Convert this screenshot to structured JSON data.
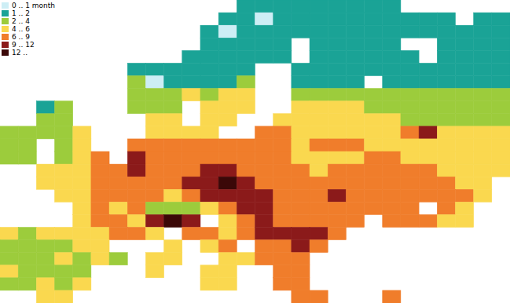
{
  "chart_data": {
    "type": "heatmap",
    "legend": "top-left",
    "tick_labels": false,
    "classes": [
      {
        "name": "0 .. 1 month",
        "color": "#cdeef5"
      },
      {
        "name": "1 .. 2",
        "color": "#1aa396"
      },
      {
        "name": "2 .. 4",
        "color": "#9ccc3c"
      },
      {
        "name": "4 .. 6",
        "color": "#fad84f"
      },
      {
        "name": "6 .. 9",
        "color": "#f07d2b"
      },
      {
        "name": "9 .. 12",
        "color": "#8b1a1a"
      },
      {
        "name": "12 ..",
        "color": "#3b0808"
      }
    ],
    "xlim": [
      -10,
      46
    ],
    "ylim": [
      35,
      71
    ],
    "x": [
      -10,
      -8,
      -6,
      -4,
      -2,
      0,
      2,
      4,
      6,
      8,
      10,
      12,
      14,
      16,
      18,
      20,
      22,
      24,
      26,
      28,
      30,
      32,
      34,
      36,
      38,
      40,
      42,
      44
    ],
    "y": [
      69.5,
      68,
      66.5,
      65,
      63.5,
      62,
      60.5,
      59,
      57.5,
      56,
      54.5,
      53,
      51.5,
      50,
      48.5,
      47,
      45.5,
      44,
      42.5,
      41,
      39.5,
      38,
      36.5,
      35
    ],
    "cells": [
      [
        null,
        null,
        null,
        null,
        null,
        null,
        null,
        null,
        null,
        null,
        null,
        null,
        null,
        1,
        1,
        1,
        1,
        1,
        1,
        1,
        1,
        1,
        null,
        null,
        null,
        null,
        null,
        null
      ],
      [
        null,
        null,
        null,
        null,
        null,
        null,
        null,
        null,
        null,
        null,
        null,
        null,
        1,
        1,
        0,
        1,
        1,
        1,
        1,
        1,
        1,
        1,
        1,
        1,
        1,
        null,
        1,
        1
      ],
      [
        null,
        null,
        null,
        null,
        null,
        null,
        null,
        null,
        null,
        null,
        null,
        1,
        0,
        1,
        1,
        1,
        1,
        1,
        1,
        1,
        1,
        1,
        1,
        1,
        1,
        1,
        1,
        1
      ],
      [
        null,
        null,
        null,
        null,
        null,
        null,
        null,
        null,
        null,
        null,
        null,
        1,
        1,
        1,
        1,
        1,
        null,
        1,
        1,
        1,
        1,
        1,
        null,
        null,
        1,
        1,
        1,
        1
      ],
      [
        null,
        null,
        null,
        null,
        null,
        null,
        null,
        null,
        null,
        null,
        1,
        1,
        1,
        1,
        1,
        1,
        null,
        1,
        1,
        1,
        1,
        1,
        1,
        null,
        1,
        1,
        1,
        1
      ],
      [
        null,
        null,
        null,
        null,
        null,
        null,
        null,
        1,
        1,
        1,
        1,
        1,
        1,
        1,
        null,
        null,
        1,
        1,
        1,
        1,
        1,
        1,
        1,
        1,
        1,
        1,
        1,
        1
      ],
      [
        null,
        null,
        null,
        null,
        null,
        null,
        null,
        2,
        0,
        1,
        1,
        1,
        1,
        2,
        null,
        null,
        1,
        1,
        1,
        1,
        null,
        1,
        1,
        1,
        1,
        1,
        1,
        1
      ],
      [
        null,
        null,
        null,
        null,
        null,
        null,
        null,
        2,
        2,
        2,
        3,
        2,
        3,
        3,
        null,
        null,
        2,
        2,
        2,
        2,
        2,
        2,
        2,
        2,
        2,
        2,
        2,
        2
      ],
      [
        null,
        null,
        1,
        2,
        null,
        null,
        null,
        2,
        2,
        2,
        null,
        3,
        3,
        3,
        null,
        null,
        3,
        3,
        3,
        3,
        2,
        2,
        2,
        2,
        2,
        2,
        2,
        2
      ],
      [
        null,
        null,
        2,
        2,
        null,
        null,
        null,
        null,
        3,
        3,
        null,
        3,
        3,
        null,
        null,
        3,
        3,
        3,
        3,
        3,
        3,
        3,
        2,
        2,
        2,
        2,
        2,
        2
      ],
      [
        2,
        2,
        2,
        2,
        3,
        null,
        null,
        null,
        3,
        3,
        3,
        3,
        null,
        null,
        4,
        4,
        3,
        3,
        3,
        3,
        3,
        3,
        4,
        5,
        3,
        3,
        3,
        3
      ],
      [
        2,
        2,
        null,
        2,
        3,
        null,
        null,
        4,
        4,
        4,
        4,
        4,
        4,
        4,
        4,
        4,
        3,
        4,
        4,
        4,
        3,
        3,
        3,
        3,
        3,
        3,
        3,
        3
      ],
      [
        2,
        2,
        null,
        2,
        3,
        4,
        null,
        5,
        4,
        4,
        4,
        4,
        4,
        4,
        4,
        4,
        3,
        3,
        3,
        3,
        4,
        4,
        3,
        3,
        3,
        3,
        3,
        3
      ],
      [
        null,
        null,
        3,
        3,
        3,
        4,
        4,
        5,
        4,
        4,
        4,
        5,
        5,
        4,
        4,
        4,
        4,
        3,
        4,
        4,
        4,
        4,
        4,
        4,
        3,
        3,
        3,
        3
      ],
      [
        null,
        null,
        3,
        3,
        3,
        4,
        4,
        4,
        4,
        4,
        5,
        5,
        6,
        5,
        4,
        4,
        4,
        4,
        4,
        4,
        4,
        4,
        4,
        4,
        4,
        3,
        3,
        null
      ],
      [
        null,
        null,
        null,
        3,
        3,
        4,
        4,
        4,
        4,
        3,
        4,
        5,
        5,
        5,
        5,
        4,
        4,
        4,
        5,
        4,
        4,
        4,
        4,
        4,
        4,
        4,
        3,
        null
      ],
      [
        null,
        null,
        null,
        null,
        3,
        4,
        3,
        4,
        2,
        2,
        2,
        3,
        4,
        5,
        5,
        4,
        4,
        4,
        4,
        4,
        4,
        4,
        4,
        null,
        4,
        3,
        null,
        null
      ],
      [
        null,
        null,
        null,
        null,
        3,
        4,
        4,
        3,
        5,
        6,
        5,
        null,
        3,
        4,
        5,
        4,
        4,
        4,
        4,
        4,
        null,
        4,
        4,
        4,
        3,
        3,
        null,
        null
      ],
      [
        3,
        2,
        3,
        3,
        3,
        3,
        4,
        4,
        3,
        null,
        4,
        4,
        3,
        4,
        5,
        5,
        5,
        5,
        4,
        null,
        null,
        null,
        null,
        null,
        null,
        null,
        null,
        null
      ],
      [
        2,
        2,
        2,
        2,
        3,
        3,
        null,
        null,
        null,
        3,
        null,
        3,
        4,
        null,
        4,
        4,
        5,
        4,
        null,
        null,
        null,
        null,
        null,
        null,
        null,
        null,
        null,
        null
      ],
      [
        2,
        2,
        2,
        3,
        2,
        3,
        2,
        null,
        3,
        3,
        null,
        null,
        3,
        3,
        4,
        4,
        4,
        null,
        null,
        null,
        null,
        null,
        null,
        null,
        null,
        null,
        null,
        null
      ],
      [
        3,
        2,
        2,
        2,
        2,
        null,
        null,
        null,
        3,
        null,
        null,
        3,
        3,
        null,
        null,
        4,
        4,
        null,
        null,
        null,
        null,
        null,
        null,
        null,
        null,
        null,
        null,
        null
      ],
      [
        2,
        2,
        3,
        2,
        3,
        null,
        null,
        null,
        null,
        null,
        null,
        3,
        3,
        null,
        null,
        4,
        4,
        null,
        null,
        null,
        null,
        null,
        null,
        null,
        null,
        null,
        null,
        null
      ],
      [
        null,
        null,
        3,
        3,
        null,
        null,
        null,
        null,
        null,
        null,
        null,
        null,
        null,
        null,
        null,
        null,
        4,
        4,
        null,
        null,
        null,
        4,
        null,
        null,
        null,
        null,
        null,
        null
      ]
    ]
  }
}
